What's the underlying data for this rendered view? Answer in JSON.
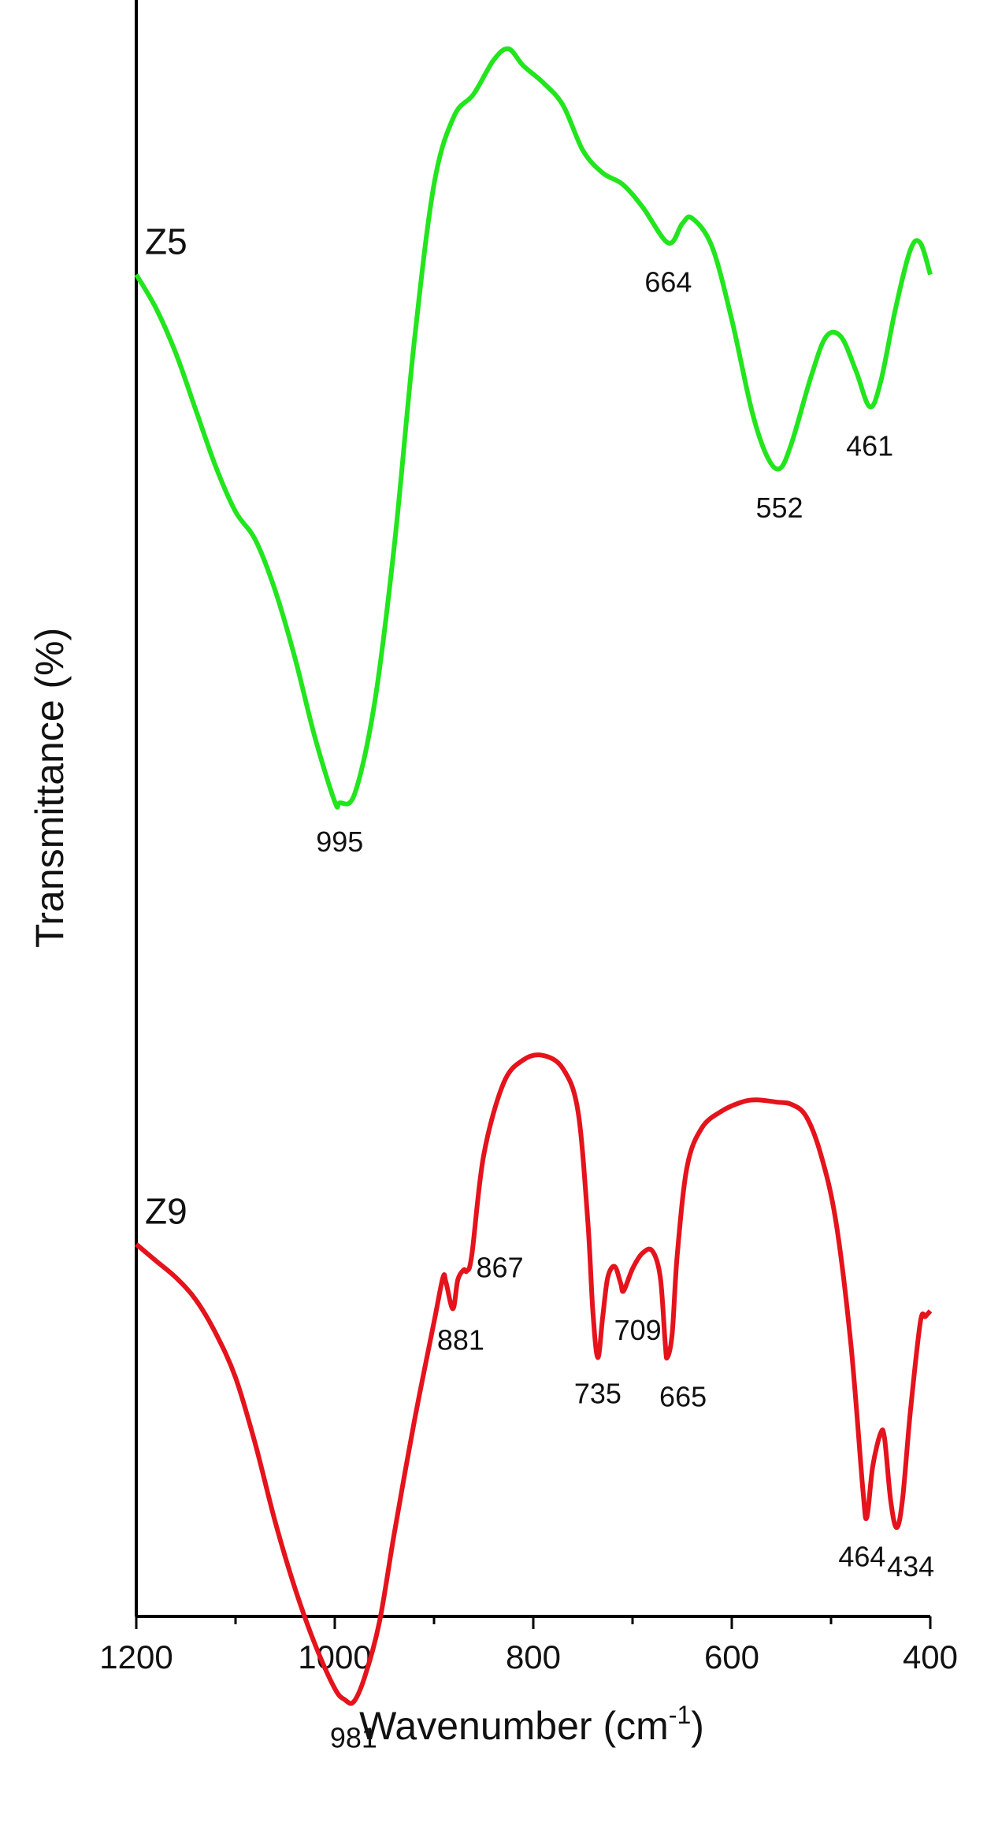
{
  "chart_data": {
    "type": "line",
    "xlabel": "Wavenumber (cm",
    "xlabel_sup": "-1",
    "xlabel_tail": ")",
    "ylabel": "Transmittance (%)",
    "xlim": [
      1200,
      400
    ],
    "xticks": [
      "1200",
      "1000",
      "800",
      "600",
      "400"
    ],
    "yticks": [],
    "grid": false,
    "series": [
      {
        "name": "Z5",
        "color": "#22e51e",
        "points": [
          [
            1200,
            0.8
          ],
          [
            1180,
            0.77
          ],
          [
            1160,
            0.73
          ],
          [
            1140,
            0.68
          ],
          [
            1120,
            0.63
          ],
          [
            1100,
            0.59
          ],
          [
            1080,
            0.565
          ],
          [
            1060,
            0.52
          ],
          [
            1040,
            0.46
          ],
          [
            1020,
            0.39
          ],
          [
            1000,
            0.333
          ],
          [
            995,
            0.332
          ],
          [
            980,
            0.34
          ],
          [
            960,
            0.42
          ],
          [
            940,
            0.56
          ],
          [
            920,
            0.74
          ],
          [
            900,
            0.88
          ],
          [
            880,
            0.94
          ],
          [
            860,
            0.96
          ],
          [
            840,
            0.99
          ],
          [
            825,
            1.0
          ],
          [
            810,
            0.985
          ],
          [
            790,
            0.97
          ],
          [
            770,
            0.95
          ],
          [
            750,
            0.91
          ],
          [
            730,
            0.89
          ],
          [
            710,
            0.88
          ],
          [
            690,
            0.86
          ],
          [
            664,
            0.828
          ],
          [
            650,
            0.845
          ],
          [
            640,
            0.85
          ],
          [
            620,
            0.825
          ],
          [
            600,
            0.76
          ],
          [
            580,
            0.68
          ],
          [
            565,
            0.64
          ],
          [
            552,
            0.628
          ],
          [
            540,
            0.65
          ],
          [
            520,
            0.71
          ],
          [
            505,
            0.745
          ],
          [
            490,
            0.745
          ],
          [
            475,
            0.715
          ],
          [
            461,
            0.683
          ],
          [
            450,
            0.705
          ],
          [
            435,
            0.77
          ],
          [
            420,
            0.822
          ],
          [
            410,
            0.828
          ],
          [
            400,
            0.8
          ]
        ]
      },
      {
        "name": "Z9",
        "color": "#e5131c",
        "points": [
          [
            1200,
            0.44
          ],
          [
            1180,
            0.425
          ],
          [
            1160,
            0.41
          ],
          [
            1140,
            0.39
          ],
          [
            1120,
            0.36
          ],
          [
            1100,
            0.32
          ],
          [
            1080,
            0.26
          ],
          [
            1060,
            0.19
          ],
          [
            1040,
            0.13
          ],
          [
            1020,
            0.08
          ],
          [
            1000,
            0.04
          ],
          [
            990,
            0.03
          ],
          [
            981,
            0.028
          ],
          [
            970,
            0.05
          ],
          [
            955,
            0.1
          ],
          [
            940,
            0.18
          ],
          [
            920,
            0.28
          ],
          [
            900,
            0.37
          ],
          [
            891,
            0.41
          ],
          [
            888,
            0.406
          ],
          [
            881,
            0.382
          ],
          [
            876,
            0.408
          ],
          [
            870,
            0.417
          ],
          [
            867,
            0.416
          ],
          [
            862,
            0.43
          ],
          [
            850,
            0.52
          ],
          [
            830,
            0.585
          ],
          [
            810,
            0.606
          ],
          [
            790,
            0.61
          ],
          [
            770,
            0.598
          ],
          [
            755,
            0.56
          ],
          [
            745,
            0.46
          ],
          [
            740,
            0.38
          ],
          [
            735,
            0.338
          ],
          [
            730,
            0.375
          ],
          [
            725,
            0.41
          ],
          [
            718,
            0.42
          ],
          [
            712,
            0.405
          ],
          [
            709,
            0.398
          ],
          [
            700,
            0.418
          ],
          [
            690,
            0.432
          ],
          [
            680,
            0.434
          ],
          [
            672,
            0.41
          ],
          [
            667,
            0.35
          ],
          [
            665,
            0.338
          ],
          [
            660,
            0.36
          ],
          [
            655,
            0.43
          ],
          [
            645,
            0.51
          ],
          [
            630,
            0.545
          ],
          [
            610,
            0.56
          ],
          [
            590,
            0.568
          ],
          [
            575,
            0.57
          ],
          [
            555,
            0.568
          ],
          [
            540,
            0.566
          ],
          [
            525,
            0.555
          ],
          [
            510,
            0.52
          ],
          [
            495,
            0.46
          ],
          [
            480,
            0.35
          ],
          [
            468,
            0.22
          ],
          [
            464,
            0.194
          ],
          [
            458,
            0.24
          ],
          [
            450,
            0.27
          ],
          [
            446,
            0.265
          ],
          [
            440,
            0.21
          ],
          [
            434,
            0.185
          ],
          [
            428,
            0.21
          ],
          [
            420,
            0.29
          ],
          [
            410,
            0.37
          ],
          [
            405,
            0.375
          ],
          [
            400,
            0.38
          ]
        ]
      }
    ],
    "annotations": [
      {
        "series": "Z5",
        "text": "995",
        "x": 995
      },
      {
        "series": "Z5",
        "text": "664",
        "x": 664
      },
      {
        "series": "Z5",
        "text": "552",
        "x": 552
      },
      {
        "series": "Z5",
        "text": "461",
        "x": 461
      },
      {
        "series": "Z9",
        "text": "981",
        "x": 981
      },
      {
        "series": "Z9",
        "text": "881",
        "x": 881
      },
      {
        "series": "Z9",
        "text": "867",
        "x": 867
      },
      {
        "series": "Z9",
        "text": "735",
        "x": 735
      },
      {
        "series": "Z9",
        "text": "709",
        "x": 709
      },
      {
        "series": "Z9",
        "text": "665",
        "x": 665
      },
      {
        "series": "Z9",
        "text": "464",
        "x": 464
      },
      {
        "series": "Z9",
        "text": "434",
        "x": 434
      }
    ]
  }
}
